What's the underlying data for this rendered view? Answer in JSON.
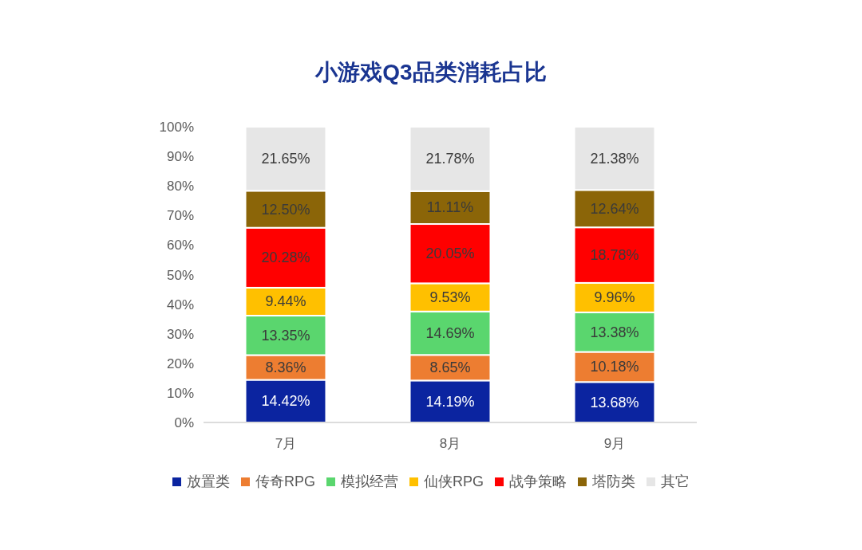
{
  "chart_data": {
    "type": "bar",
    "stacked": true,
    "title": "小游戏Q3品类消耗占比",
    "categories": [
      "7月",
      "8月",
      "9月"
    ],
    "series": [
      {
        "name": "放置类",
        "color": "#0b24a0",
        "values": [
          14.42,
          14.19,
          13.68
        ],
        "value_labels": [
          "14.42%",
          "14.19%",
          "13.68%"
        ]
      },
      {
        "name": "传奇RPG",
        "color": "#ed7d31",
        "values": [
          8.36,
          8.65,
          10.18
        ],
        "value_labels": [
          "8.36%",
          "8.65%",
          "10.18%"
        ]
      },
      {
        "name": "模拟经营",
        "color": "#5ad66e",
        "values": [
          13.35,
          14.69,
          13.38
        ],
        "value_labels": [
          "13.35%",
          "14.69%",
          "13.38%"
        ]
      },
      {
        "name": "仙侠RPG",
        "color": "#ffc000",
        "values": [
          9.44,
          9.53,
          9.96
        ],
        "value_labels": [
          "9.44%",
          "9.53%",
          "9.96%"
        ]
      },
      {
        "name": "战争策略",
        "color": "#ff0000",
        "values": [
          20.28,
          20.05,
          18.78
        ],
        "value_labels": [
          "20.28%",
          "20.05%",
          "18.78%"
        ]
      },
      {
        "name": "塔防类",
        "color": "#8b6508",
        "values": [
          12.5,
          11.11,
          12.64
        ],
        "value_labels": [
          "12.50%",
          "11.11%",
          "12.64%"
        ]
      },
      {
        "name": "其它",
        "color": "#e6e6e6",
        "values": [
          21.65,
          21.78,
          21.38
        ],
        "value_labels": [
          "21.65%",
          "21.78%",
          "21.38%"
        ]
      }
    ],
    "ylim": [
      0,
      100
    ],
    "yticks": [
      {
        "value": 0,
        "label": "0%"
      },
      {
        "value": 10,
        "label": "10%"
      },
      {
        "value": 20,
        "label": "20%"
      },
      {
        "value": 30,
        "label": "30%"
      },
      {
        "value": 40,
        "label": "40%"
      },
      {
        "value": 50,
        "label": "50%"
      },
      {
        "value": 60,
        "label": "60%"
      },
      {
        "value": 70,
        "label": "70%"
      },
      {
        "value": 80,
        "label": "80%"
      },
      {
        "value": 90,
        "label": "90%"
      },
      {
        "value": 100,
        "label": "100%"
      }
    ],
    "legend": "bottom"
  }
}
